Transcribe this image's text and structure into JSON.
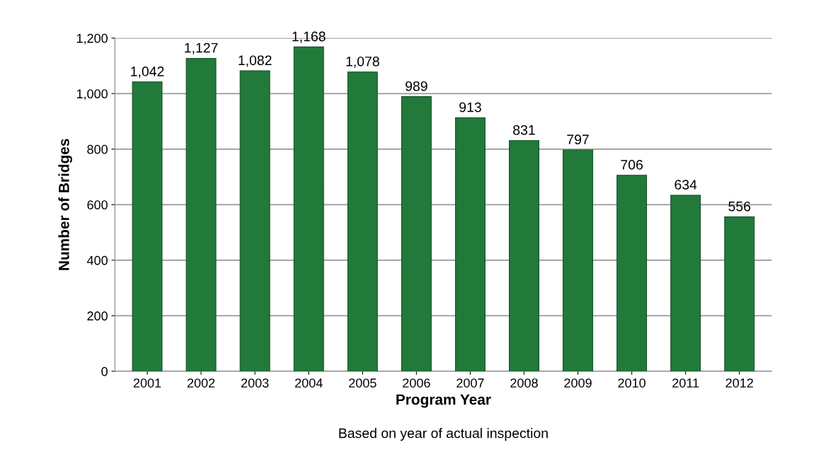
{
  "chart_data": {
    "type": "bar",
    "xlabel": "Program Year",
    "ylabel": "Number of Bridges",
    "annotations": [
      "Based on year of actual inspection"
    ],
    "categories": [
      "2001",
      "2002",
      "2003",
      "2004",
      "2005",
      "2006",
      "2007",
      "2008",
      "2009",
      "2010",
      "2011",
      "2012"
    ],
    "values": [
      1042,
      1127,
      1082,
      1168,
      1078,
      989,
      913,
      831,
      797,
      706,
      634,
      556
    ],
    "value_labels": [
      "1,042",
      "1,127",
      "1,082",
      "1,168",
      "1,078",
      "989",
      "913",
      "831",
      "797",
      "706",
      "634",
      "556"
    ],
    "color": "#217a3a",
    "ylim": [
      0,
      1200
    ],
    "yticks": [
      0,
      {
        "value": 200,
        "label": "200"
      },
      {
        "value": 400,
        "label": "400"
      },
      {
        "value": 600,
        "label": "600"
      },
      {
        "value": 800,
        "label": "800"
      },
      {
        "value": 1000,
        "label": "1,000"
      },
      {
        "value": 1200,
        "label": "1,200"
      }
    ],
    "grid": "y",
    "legend": false
  }
}
